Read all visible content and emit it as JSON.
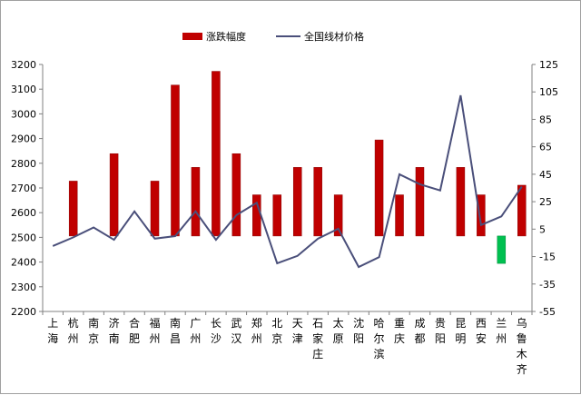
{
  "chart_data": {
    "type": "bar",
    "categories": [
      "上海",
      "杭州",
      "南京",
      "济南",
      "合肥",
      "福州",
      "南昌",
      "广州",
      "长沙",
      "武汉",
      "郑州",
      "北京",
      "天津",
      "石家庄",
      "太原",
      "沈阳",
      "哈尔滨",
      "重庆",
      "成都",
      "贵阳",
      "昆明",
      "西安",
      "兰州",
      "乌鲁木齐"
    ],
    "series": [
      {
        "name": "涨跌幅度",
        "kind": "bar",
        "axis": "right",
        "color": "#c00000",
        "values": [
          null,
          40,
          null,
          60,
          null,
          40,
          110,
          50,
          120,
          60,
          30,
          30,
          50,
          50,
          30,
          null,
          70,
          30,
          50,
          null,
          50,
          30,
          -20,
          37
        ]
      },
      {
        "name": "全国线材价格",
        "kind": "line",
        "axis": "left",
        "color": "#4a4f7a",
        "values": [
          2465,
          2500,
          2540,
          2490,
          2605,
          2495,
          2505,
          2605,
          2490,
          2590,
          2640,
          2395,
          2425,
          2495,
          2535,
          2380,
          2420,
          2755,
          2715,
          2690,
          3075,
          2550,
          2585,
          2705
        ]
      }
    ],
    "left_axis": {
      "ylim": [
        2200,
        3200
      ],
      "ticks": [
        2200,
        2300,
        2400,
        2500,
        2600,
        2700,
        2800,
        2900,
        3000,
        3100,
        3200
      ]
    },
    "right_axis": {
      "ylim": [
        -55,
        125
      ],
      "ticks": [
        -55,
        -35,
        -15,
        5,
        25,
        45,
        65,
        85,
        105,
        125
      ]
    },
    "legend": {
      "placement": "top-center"
    },
    "grid": false
  }
}
